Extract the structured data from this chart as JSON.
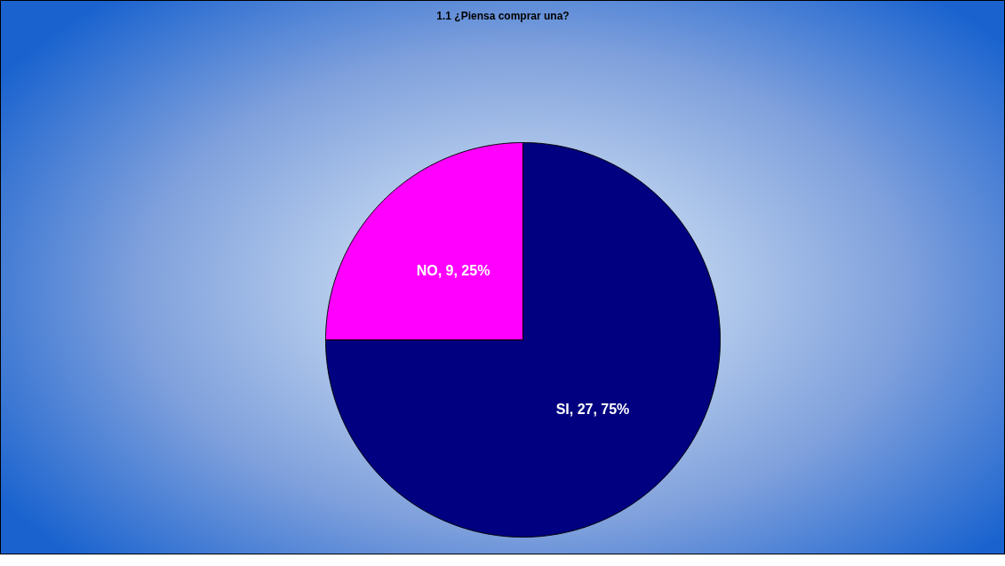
{
  "chart_data": {
    "type": "pie",
    "title": "1.1 ¿Piensa comprar una?",
    "categories": [
      "SI",
      "NO"
    ],
    "values": [
      27,
      9
    ],
    "colors": [
      "#000080",
      "#ff00ff"
    ],
    "value_labels": [
      "27, 75%",
      "9, 25%"
    ]
  }
}
